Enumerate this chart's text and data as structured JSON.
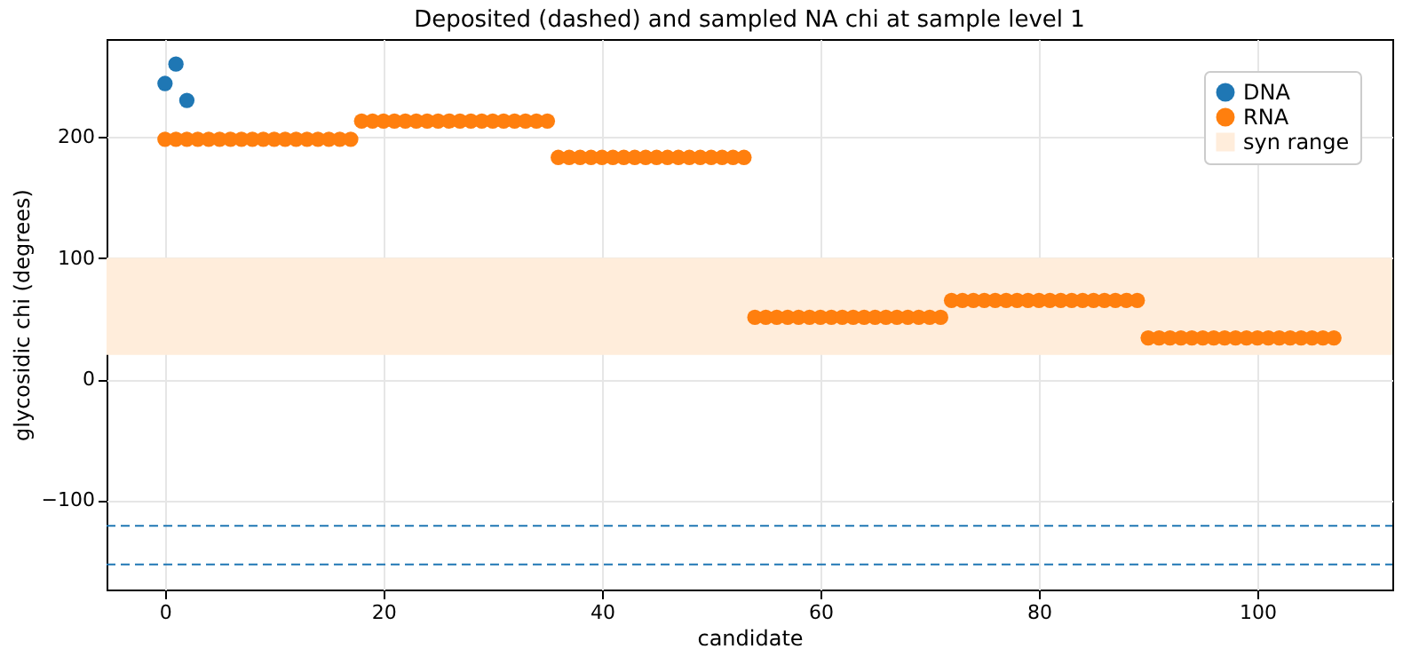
{
  "chart_data": {
    "type": "scatter",
    "title": "Deposited (dashed) and sampled NA chi at sample level 1",
    "xlabel": "candidate",
    "ylabel": "glycosidic chi (degrees)",
    "series": [
      {
        "name": "DNA",
        "color": "#1f77b4",
        "x": [
          0,
          1,
          2
        ],
        "values": [
          244,
          260,
          230
        ]
      },
      {
        "name": "RNA",
        "color": "#ff7f0e",
        "x": [
          0,
          1,
          2,
          3,
          4,
          5,
          6,
          7,
          8,
          9,
          10,
          11,
          12,
          13,
          14,
          15,
          16,
          17,
          18,
          19,
          20,
          21,
          22,
          23,
          24,
          25,
          26,
          27,
          28,
          29,
          30,
          31,
          32,
          33,
          34,
          35,
          36,
          37,
          38,
          39,
          40,
          41,
          42,
          43,
          44,
          45,
          46,
          47,
          48,
          49,
          50,
          51,
          52,
          53,
          54,
          55,
          56,
          57,
          58,
          59,
          60,
          61,
          62,
          63,
          64,
          65,
          66,
          67,
          68,
          69,
          70,
          71,
          72,
          73,
          74,
          75,
          76,
          77,
          78,
          79,
          80,
          81,
          82,
          83,
          84,
          85,
          86,
          87,
          88,
          89,
          90,
          91,
          92,
          93,
          94,
          95,
          96,
          97,
          98,
          99,
          100,
          101,
          102,
          103,
          104,
          105,
          106,
          107
        ],
        "values": [
          198,
          198,
          198,
          198,
          198,
          198,
          198,
          198,
          198,
          198,
          198,
          198,
          198,
          198,
          198,
          198,
          198,
          198,
          213,
          213,
          213,
          213,
          213,
          213,
          213,
          213,
          213,
          213,
          213,
          213,
          213,
          213,
          213,
          213,
          213,
          213,
          183,
          183,
          183,
          183,
          183,
          183,
          183,
          183,
          183,
          183,
          183,
          183,
          183,
          183,
          183,
          183,
          183,
          183,
          51,
          51,
          51,
          51,
          51,
          51,
          51,
          51,
          51,
          51,
          51,
          51,
          51,
          51,
          51,
          51,
          51,
          51,
          65,
          65,
          65,
          65,
          65,
          65,
          65,
          65,
          65,
          65,
          65,
          65,
          65,
          65,
          65,
          65,
          65,
          65,
          34,
          34,
          34,
          34,
          34,
          34,
          34,
          34,
          34,
          34,
          34,
          34,
          34,
          34,
          34,
          34,
          34,
          34
        ]
      }
    ],
    "bands": [
      {
        "axis": "y",
        "from": 20,
        "to": 100,
        "label": "syn range",
        "color": "#ffeddb"
      }
    ],
    "ref_lines": [
      {
        "axis": "y",
        "value": -121,
        "color": "#1f77b4",
        "line_style": "dashed"
      },
      {
        "axis": "y",
        "value": -153,
        "color": "#1f77b4",
        "line_style": "dashed"
      }
    ],
    "xlim": [
      -5.35,
      112.35
    ],
    "xticks": [
      0,
      20,
      40,
      60,
      80,
      100
    ],
    "ylim": [
      -173.65,
      280.65
    ],
    "yticks": [
      -100,
      0,
      100,
      200
    ],
    "grid": true,
    "legend": "top right",
    "marker": "circle"
  }
}
